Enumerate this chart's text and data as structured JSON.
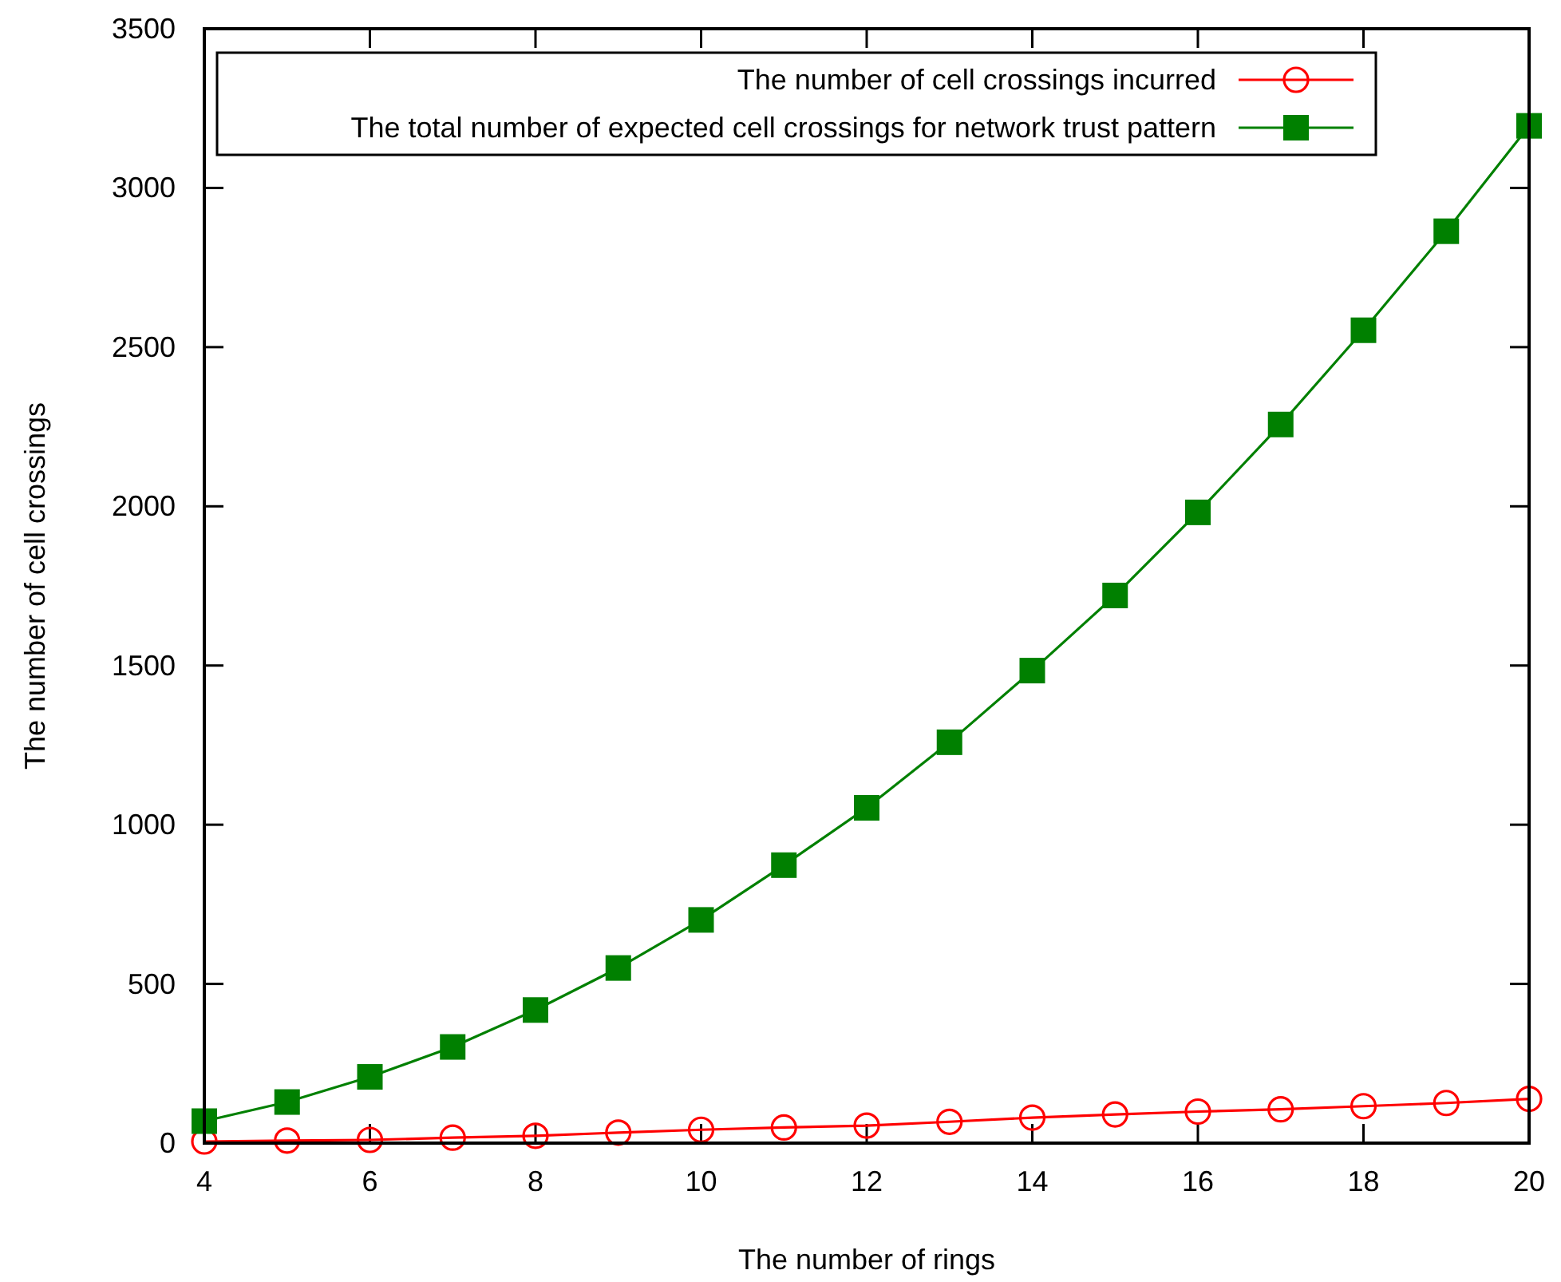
{
  "chart_data": {
    "type": "line",
    "xlabel": "The number of rings",
    "ylabel": "The number of cell crossings",
    "x": [
      4,
      5,
      6,
      7,
      8,
      9,
      10,
      11,
      12,
      13,
      14,
      15,
      16,
      17,
      18,
      19,
      20
    ],
    "series": [
      {
        "name": "The number of cell crossings incurred",
        "color": "#ff0000",
        "marker": "circle",
        "values": [
          5,
          8,
          10,
          17,
          23,
          33,
          42,
          49,
          55,
          67,
          80,
          90,
          99,
          106,
          116,
          126,
          139
        ]
      },
      {
        "name": "The total number of expected cell crossings for network trust pattern",
        "color": "#008000",
        "marker": "square",
        "values": [
          69,
          129,
          208,
          302,
          418,
          550,
          701,
          873,
          1053,
          1259,
          1484,
          1720,
          1981,
          2257,
          2553,
          2864,
          3195
        ]
      }
    ],
    "xlim": [
      4,
      20
    ],
    "xticks": [
      4,
      6,
      8,
      10,
      12,
      14,
      16,
      18,
      20
    ],
    "ylim": [
      0,
      3500
    ],
    "yticks": [
      0,
      500,
      1000,
      1500,
      2000,
      2500,
      3000,
      3500
    ],
    "grid": false,
    "legend": "top left",
    "line_style": "solid"
  }
}
